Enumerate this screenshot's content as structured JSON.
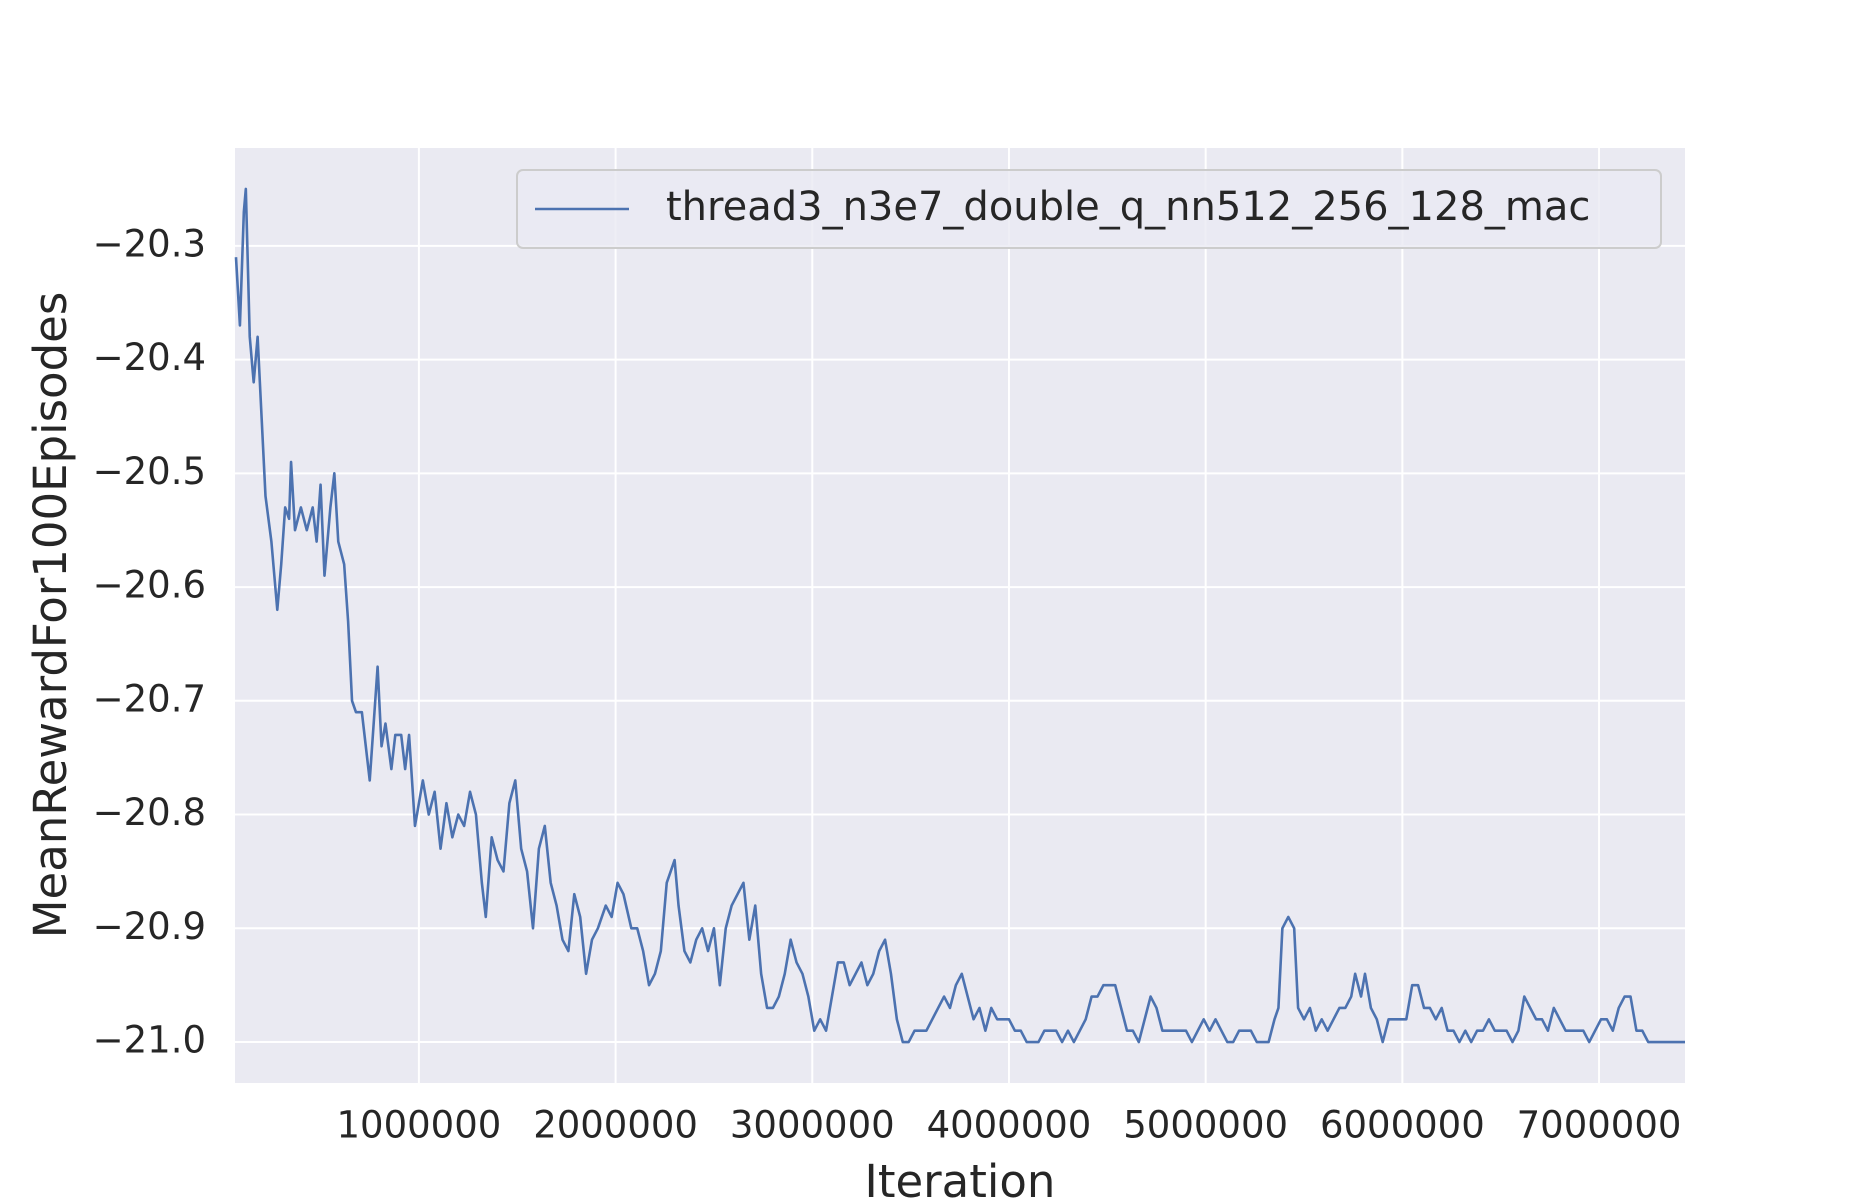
{
  "chart_data": {
    "type": "line",
    "xlabel": "Iteration",
    "ylabel": "MeanRewardFor100Episodes",
    "xlim": [
      65000,
      7437000
    ],
    "ylim": [
      -21.036,
      -20.214
    ],
    "xticks": [
      1000000,
      2000000,
      3000000,
      4000000,
      5000000,
      6000000,
      7000000
    ],
    "yticks": [
      {
        "value": -20.3,
        "label": "−20.3"
      },
      {
        "value": -20.4,
        "label": "−20.4"
      },
      {
        "value": -20.5,
        "label": "−20.5"
      },
      {
        "value": -20.6,
        "label": "−20.6"
      },
      {
        "value": -20.7,
        "label": "−20.7"
      },
      {
        "value": -20.8,
        "label": "−20.8"
      },
      {
        "value": -20.9,
        "label": "−20.9"
      },
      {
        "value": -21.0,
        "label": "−21.0"
      }
    ],
    "grid": true,
    "legend": "upper right",
    "x": [
      70000,
      90000,
      110000,
      120000,
      140000,
      160000,
      180000,
      200000,
      220000,
      250000,
      280000,
      300000,
      320000,
      340000,
      350000,
      370000,
      400000,
      430000,
      460000,
      480000,
      500000,
      520000,
      550000,
      570000,
      590000,
      620000,
      640000,
      660000,
      680000,
      710000,
      730000,
      750000,
      770000,
      790000,
      810000,
      830000,
      860000,
      880000,
      910000,
      930000,
      950000,
      980000,
      1000000,
      1020000,
      1050000,
      1080000,
      1110000,
      1140000,
      1170000,
      1200000,
      1230000,
      1260000,
      1290000,
      1320000,
      1340000,
      1370000,
      1400000,
      1430000,
      1460000,
      1490000,
      1520000,
      1550000,
      1580000,
      1610000,
      1640000,
      1670000,
      1700000,
      1730000,
      1760000,
      1790000,
      1820000,
      1850000,
      1880000,
      1910000,
      1950000,
      1980000,
      2010000,
      2040000,
      2080000,
      2110000,
      2140000,
      2170000,
      2200000,
      2230000,
      2260000,
      2280000,
      2300000,
      2320000,
      2350000,
      2380000,
      2410000,
      2440000,
      2470000,
      2500000,
      2530000,
      2560000,
      2590000,
      2620000,
      2650000,
      2680000,
      2710000,
      2740000,
      2770000,
      2800000,
      2830000,
      2860000,
      2890000,
      2920000,
      2950000,
      2980000,
      3010000,
      3040000,
      3070000,
      3100000,
      3130000,
      3160000,
      3190000,
      3220000,
      3250000,
      3280000,
      3310000,
      3340000,
      3370000,
      3400000,
      3430000,
      3460000,
      3490000,
      3520000,
      3550000,
      3580000,
      3610000,
      3640000,
      3670000,
      3700000,
      3730000,
      3760000,
      3790000,
      3820000,
      3850000,
      3880000,
      3910000,
      3940000,
      3970000,
      4000000,
      4030000,
      4060000,
      4090000,
      4120000,
      4150000,
      4180000,
      4210000,
      4240000,
      4270000,
      4300000,
      4330000,
      4360000,
      4390000,
      4420000,
      4450000,
      4480000,
      4510000,
      4540000,
      4570000,
      4600000,
      4630000,
      4660000,
      4690000,
      4720000,
      4750000,
      4780000,
      4810000,
      4840000,
      4870000,
      4900000,
      4930000,
      4960000,
      4990000,
      5020000,
      5050000,
      5080000,
      5110000,
      5140000,
      5170000,
      5200000,
      5230000,
      5260000,
      5290000,
      5320000,
      5350000,
      5370000,
      5390000,
      5420000,
      5450000,
      5470000,
      5500000,
      5530000,
      5560000,
      5590000,
      5620000,
      5650000,
      5680000,
      5710000,
      5740000,
      5760000,
      5790000,
      5810000,
      5840000,
      5870000,
      5900000,
      5930000,
      5960000,
      5990000,
      6020000,
      6050000,
      6080000,
      6110000,
      6140000,
      6170000,
      6200000,
      6230000,
      6260000,
      6290000,
      6320000,
      6350000,
      6380000,
      6410000,
      6440000,
      6470000,
      6500000,
      6530000,
      6560000,
      6590000,
      6620000,
      6650000,
      6680000,
      6710000,
      6740000,
      6770000,
      6800000,
      6830000,
      6860000,
      6890000,
      6920000,
      6950000,
      6980000,
      7010000,
      7040000,
      7070000,
      7100000,
      7130000,
      7160000,
      7190000,
      7220000,
      7250000,
      7290000,
      7330000,
      7380000,
      7437000
    ],
    "series": [
      {
        "name": "thread3_n3e7_double_q_nn512_256_128_mac",
        "color": "#4c72b0",
        "values": [
          -20.31,
          -20.37,
          -20.27,
          -20.25,
          -20.38,
          -20.42,
          -20.38,
          -20.45,
          -20.52,
          -20.56,
          -20.62,
          -20.58,
          -20.53,
          -20.54,
          -20.49,
          -20.55,
          -20.53,
          -20.55,
          -20.53,
          -20.56,
          -20.51,
          -20.59,
          -20.53,
          -20.5,
          -20.56,
          -20.58,
          -20.63,
          -20.7,
          -20.71,
          -20.71,
          -20.74,
          -20.77,
          -20.72,
          -20.67,
          -20.74,
          -20.72,
          -20.76,
          -20.73,
          -20.73,
          -20.76,
          -20.73,
          -20.81,
          -20.79,
          -20.77,
          -20.8,
          -20.78,
          -20.83,
          -20.79,
          -20.82,
          -20.8,
          -20.81,
          -20.78,
          -20.8,
          -20.86,
          -20.89,
          -20.82,
          -20.84,
          -20.85,
          -20.79,
          -20.77,
          -20.83,
          -20.85,
          -20.9,
          -20.83,
          -20.81,
          -20.86,
          -20.88,
          -20.91,
          -20.92,
          -20.87,
          -20.89,
          -20.94,
          -20.91,
          -20.9,
          -20.88,
          -20.89,
          -20.86,
          -20.87,
          -20.9,
          -20.9,
          -20.92,
          -20.95,
          -20.94,
          -20.92,
          -20.86,
          -20.85,
          -20.84,
          -20.88,
          -20.92,
          -20.93,
          -20.91,
          -20.9,
          -20.92,
          -20.9,
          -20.95,
          -20.9,
          -20.88,
          -20.87,
          -20.86,
          -20.91,
          -20.88,
          -20.94,
          -20.97,
          -20.97,
          -20.96,
          -20.94,
          -20.91,
          -20.93,
          -20.94,
          -20.96,
          -20.99,
          -20.98,
          -20.99,
          -20.96,
          -20.93,
          -20.93,
          -20.95,
          -20.94,
          -20.93,
          -20.95,
          -20.94,
          -20.92,
          -20.91,
          -20.94,
          -20.98,
          -21.0,
          -21.0,
          -20.99,
          -20.99,
          -20.99,
          -20.98,
          -20.97,
          -20.96,
          -20.97,
          -20.95,
          -20.94,
          -20.96,
          -20.98,
          -20.97,
          -20.99,
          -20.97,
          -20.98,
          -20.98,
          -20.98,
          -20.99,
          -20.99,
          -21.0,
          -21.0,
          -21.0,
          -20.99,
          -20.99,
          -20.99,
          -21.0,
          -20.99,
          -21.0,
          -20.99,
          -20.98,
          -20.96,
          -20.96,
          -20.95,
          -20.95,
          -20.95,
          -20.97,
          -20.99,
          -20.99,
          -21.0,
          -20.98,
          -20.96,
          -20.97,
          -20.99,
          -20.99,
          -20.99,
          -20.99,
          -20.99,
          -21.0,
          -20.99,
          -20.98,
          -20.99,
          -20.98,
          -20.99,
          -21.0,
          -21.0,
          -20.99,
          -20.99,
          -20.99,
          -21.0,
          -21.0,
          -21.0,
          -20.98,
          -20.97,
          -20.9,
          -20.89,
          -20.9,
          -20.97,
          -20.98,
          -20.97,
          -20.99,
          -20.98,
          -20.99,
          -20.98,
          -20.97,
          -20.97,
          -20.96,
          -20.94,
          -20.96,
          -20.94,
          -20.97,
          -20.98,
          -21.0,
          -20.98,
          -20.98,
          -20.98,
          -20.98,
          -20.95,
          -20.95,
          -20.97,
          -20.97,
          -20.98,
          -20.97,
          -20.99,
          -20.99,
          -21.0,
          -20.99,
          -21.0,
          -20.99,
          -20.99,
          -20.98,
          -20.99,
          -20.99,
          -20.99,
          -21.0,
          -20.99,
          -20.96,
          -20.97,
          -20.98,
          -20.98,
          -20.99,
          -20.97,
          -20.98,
          -20.99,
          -20.99,
          -20.99,
          -20.99,
          -21.0,
          -20.99,
          -20.98,
          -20.98,
          -20.99,
          -20.97,
          -20.96,
          -20.96,
          -20.99,
          -20.99,
          -21.0,
          -21.0,
          -21.0,
          -21.0,
          -21.0
        ]
      }
    ]
  }
}
